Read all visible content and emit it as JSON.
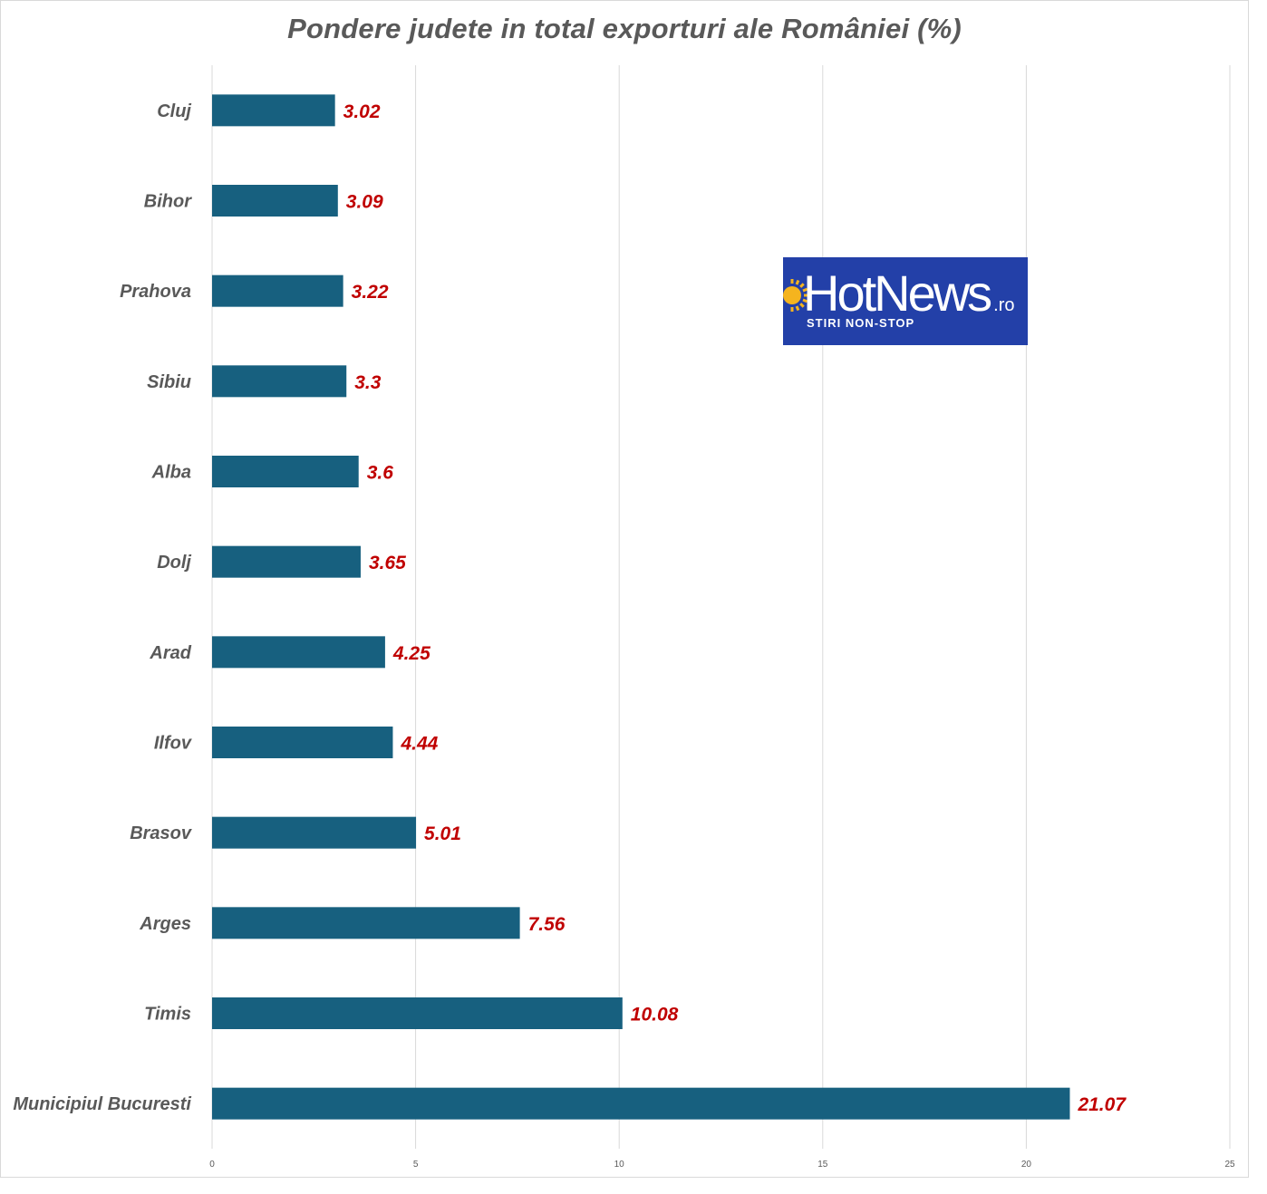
{
  "chart_data": {
    "type": "bar",
    "orientation": "horizontal",
    "title": "Pondere judete in total exporturi ale României (%)",
    "xlabel": "",
    "ylabel": "",
    "xlim": [
      0,
      25
    ],
    "x_ticks": [
      "0",
      "5",
      "10",
      "15",
      "20",
      "25"
    ],
    "grid": true,
    "categories": [
      "Cluj",
      "Bihor",
      "Prahova",
      "Sibiu",
      "Alba",
      "Dolj",
      "Arad",
      "Ilfov",
      "Brasov",
      "Arges",
      "Timis",
      "Municipiul Bucuresti"
    ],
    "values": [
      3.02,
      3.09,
      3.22,
      3.3,
      3.6,
      3.65,
      4.25,
      4.44,
      5.01,
      7.56,
      10.08,
      21.07
    ],
    "value_labels": [
      "3.02",
      "3.09",
      "3.22",
      "3.3",
      "3.6",
      "3.65",
      "4.25",
      "4.44",
      "5.01",
      "7.56",
      "10.08",
      "21.07"
    ],
    "colors": {
      "bar": "#17607f",
      "value_label": "#c00000",
      "category_label": "#595959",
      "grid": "#d9d9d9"
    }
  },
  "logo": {
    "name": "HotNews",
    "suffix": ".ro",
    "tagline": "STIRI NON-STOP",
    "background": "#2340a8",
    "sun_color": "#f5b41e"
  }
}
